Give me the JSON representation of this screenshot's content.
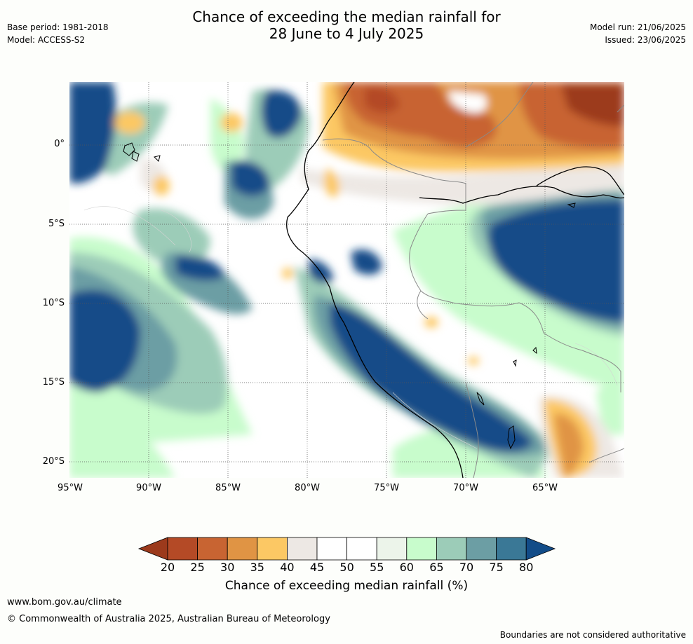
{
  "header": {
    "title_line1": "Chance of exceeding the median rainfall for",
    "title_line2": "28 June to 4 July 2025",
    "base_period": "Base period: 1981-2018",
    "model": "Model: ACCESS-S2",
    "model_run": "Model run: 21/06/2025",
    "issued": "Issued: 23/06/2025"
  },
  "axes": {
    "lat_labels": [
      "0°",
      "5°S",
      "10°S",
      "15°S",
      "20°S"
    ],
    "lon_labels": [
      "95°W",
      "90°W",
      "85°W",
      "80°W",
      "75°W",
      "70°W",
      "65°W"
    ]
  },
  "colorbar": {
    "title": "Chance of exceeding median rainfall (%)",
    "ticks": [
      "20",
      "25",
      "30",
      "35",
      "40",
      "45",
      "50",
      "55",
      "60",
      "65",
      "70",
      "75",
      "80"
    ],
    "colors": [
      "#9c3a1c",
      "#b44a26",
      "#c86432",
      "#e09444",
      "#fcc864",
      "#ede8e4",
      "#ffffff",
      "#ffffff",
      "#ecf4ea",
      "#c8fccc",
      "#9cccb8",
      "#6c9ea4",
      "#3a7896",
      "#124c88"
    ]
  },
  "footer": {
    "url": "www.bom.gov.au/climate",
    "copyright": "© Commonwealth of Australia 2025, Australian Bureau of Meteorology",
    "disclaimer": "Boundaries are not considered authoritative"
  }
}
